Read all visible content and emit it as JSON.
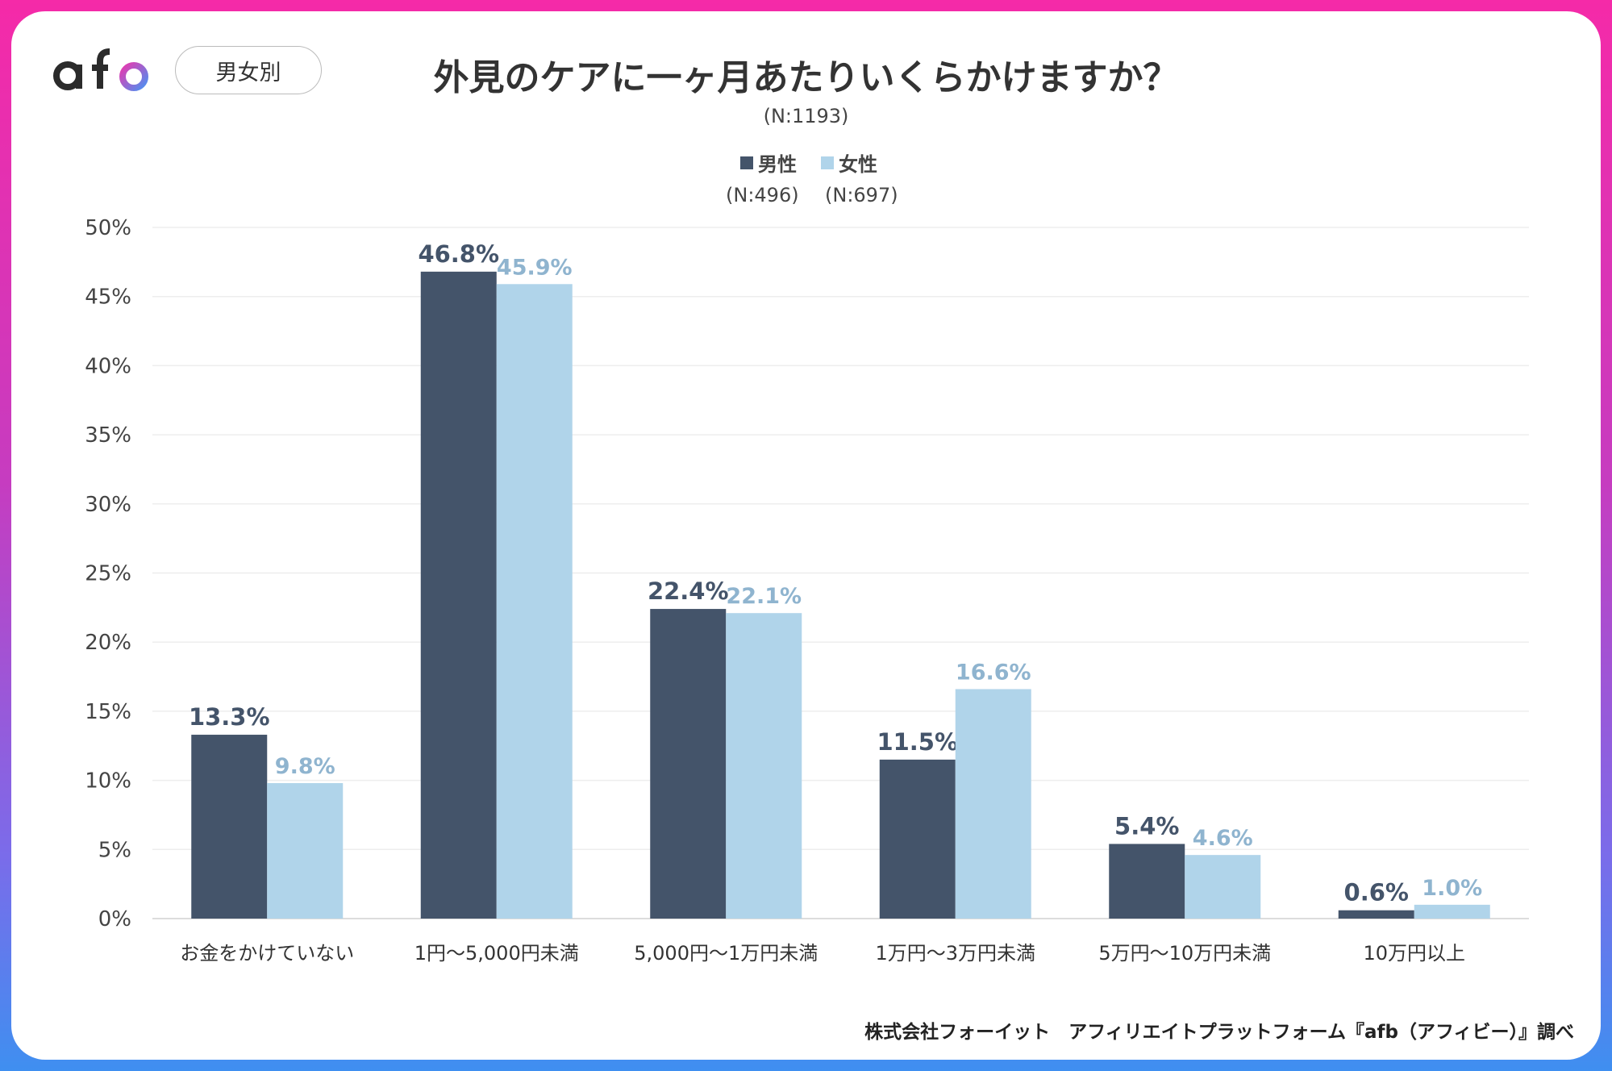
{
  "header": {
    "logo": "afb",
    "badge": "男女別"
  },
  "footer": "株式会社フォーイット　アフィリエイトプラットフォーム『afb（アフィビー）』調べ",
  "chart_data": {
    "type": "bar",
    "title": "外見のケアに一ヶ月あたりいくらかけますか？",
    "subtitle": "(N:1193)",
    "categories": [
      "お金をかけていない",
      "1円〜5,000円未満",
      "5,000円〜1万円未満",
      "1万円〜3万円未満",
      "5万円〜10万円未満",
      "10万円以上"
    ],
    "series": [
      {
        "name": "男性",
        "n_label": "(N:496)",
        "color": "#44546a",
        "label_color": "#44546a",
        "values": [
          13.3,
          46.8,
          22.4,
          11.5,
          5.4,
          0.6
        ],
        "labels": [
          "13.3%",
          "46.8%",
          "22.4%",
          "11.5%",
          "5.4%",
          "0.6%"
        ]
      },
      {
        "name": "女性",
        "n_label": "(N:697)",
        "color": "#b0d4ea",
        "label_color": "#8fb4cf",
        "values": [
          9.8,
          45.9,
          22.1,
          16.6,
          4.6,
          1.0
        ],
        "labels": [
          "9.8%",
          "45.9%",
          "22.1%",
          "16.6%",
          "4.6%",
          "1.0%"
        ]
      }
    ],
    "yticks": [
      "0%",
      "5%",
      "10%",
      "15%",
      "20%",
      "25%",
      "30%",
      "35%",
      "40%",
      "45%",
      "50%"
    ],
    "ylim": [
      0,
      50
    ],
    "grid": true,
    "legend": "top-center"
  }
}
